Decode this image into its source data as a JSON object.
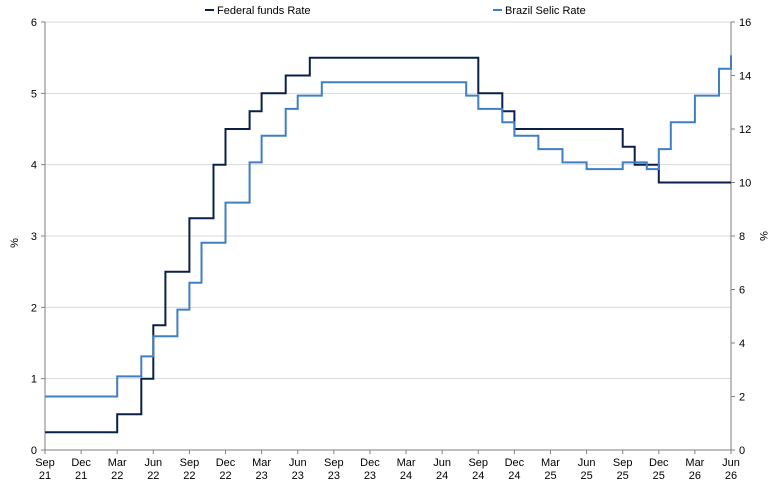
{
  "chart_data": {
    "type": "line",
    "legend": {
      "placement": "top"
    },
    "grid": "horizontal",
    "x_axis": {
      "ticks": [
        "Sep 21",
        "Dec 21",
        "Mar 22",
        "Jun 22",
        "Sep 22",
        "Dec 22",
        "Mar 23",
        "Jun 23",
        "Sep 23",
        "Dec 23",
        "Mar 24",
        "Jun 24",
        "Sep 24",
        "Dec 24",
        "Mar 25",
        "Jun 25",
        "Sep 25",
        "Dec 25",
        "Mar 26",
        "Jun 26"
      ]
    },
    "y_left": {
      "label": "%",
      "range": [
        0,
        6
      ],
      "ticks": [
        "0",
        "1",
        "2",
        "3",
        "4",
        "5",
        "6"
      ]
    },
    "y_right": {
      "label": "%",
      "range": [
        0,
        16
      ],
      "ticks": [
        "0",
        "2",
        "4",
        "6",
        "8",
        "10",
        "12",
        "14",
        "16"
      ]
    },
    "series": [
      {
        "name": "Federal funds Rate",
        "axis": "left",
        "color": "#0b1f4a",
        "step": true,
        "points": [
          [
            "Sep 21",
            0.25
          ],
          [
            "Mar 22",
            0.5
          ],
          [
            "May 22",
            1.0
          ],
          [
            "Jun 22",
            1.75
          ],
          [
            "Jul 22",
            2.5
          ],
          [
            "Sep 22",
            3.25
          ],
          [
            "Nov 22",
            4.0
          ],
          [
            "Dec 22",
            4.5
          ],
          [
            "Feb 23",
            4.75
          ],
          [
            "Mar 23",
            5.0
          ],
          [
            "May 23",
            5.25
          ],
          [
            "Jul 23",
            5.5
          ],
          [
            "Sep 24",
            5.0
          ],
          [
            "Nov 24",
            4.75
          ],
          [
            "Dec 24",
            4.5
          ],
          [
            "Sep 25",
            4.25
          ],
          [
            "Oct 25",
            4.0
          ],
          [
            "Dec 25",
            3.75
          ],
          [
            "Jun 26",
            3.75
          ]
        ]
      },
      {
        "name": "Brazil Selic Rate",
        "axis": "right",
        "color": "#3f7fc4",
        "step": true,
        "points": [
          [
            "Sep 21",
            2.0
          ],
          [
            "Mar 22",
            2.75
          ],
          [
            "May 22",
            3.5
          ],
          [
            "Jun 22",
            4.25
          ],
          [
            "Aug 22",
            5.25
          ],
          [
            "Sep 22",
            6.25
          ],
          [
            "Oct 22",
            7.75
          ],
          [
            "Dec 22",
            9.25
          ],
          [
            "Feb 23",
            10.75
          ],
          [
            "Mar 23",
            11.75
          ],
          [
            "May 23",
            12.75
          ],
          [
            "Jun 23",
            13.25
          ],
          [
            "Aug 23",
            13.75
          ],
          [
            "Aug 24",
            13.25
          ],
          [
            "Sep 24",
            12.75
          ],
          [
            "Nov 24",
            12.25
          ],
          [
            "Dec 24",
            11.75
          ],
          [
            "Feb 25",
            11.25
          ],
          [
            "Apr 25",
            10.75
          ],
          [
            "Jun 25",
            10.5
          ],
          [
            "Sep 25",
            10.75
          ],
          [
            "Nov 25",
            10.5
          ],
          [
            "Dec 25",
            11.25
          ],
          [
            "Jan 26",
            12.25
          ],
          [
            "Mar 26",
            13.25
          ],
          [
            "May 26",
            14.25
          ],
          [
            "Jun 26",
            14.75
          ]
        ]
      }
    ]
  }
}
